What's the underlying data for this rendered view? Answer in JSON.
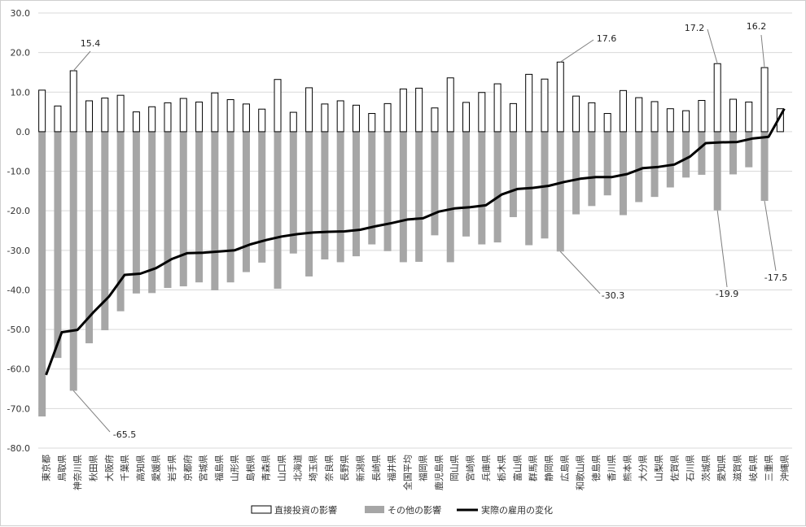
{
  "chart_data": {
    "type": "bar",
    "categories": [
      "東京都",
      "鳥取県",
      "神奈川県",
      "秋田県",
      "大阪府",
      "千葉県",
      "高知県",
      "愛媛県",
      "岩手県",
      "京都府",
      "宮城県",
      "福島県",
      "山形県",
      "島根県",
      "青森県",
      "山口県",
      "北海道",
      "埼玉県",
      "奈良県",
      "長野県",
      "新潟県",
      "長崎県",
      "福井県",
      "全国平均",
      "福岡県",
      "鹿児島県",
      "岡山県",
      "宮崎県",
      "兵庫県",
      "栃木県",
      "富山県",
      "群馬県",
      "静岡県",
      "広島県",
      "和歌山県",
      "徳島県",
      "香川県",
      "熊本県",
      "大分県",
      "山梨県",
      "佐賀県",
      "石川県",
      "茨城県",
      "愛知県",
      "滋賀県",
      "岐阜県",
      "三重県",
      "沖縄県"
    ],
    "series": [
      {
        "name": "直接投資の影響",
        "kind": "bar",
        "color": "#ffffff",
        "stroke": "#000000",
        "values": [
          10.5,
          6.5,
          15.4,
          7.8,
          8.5,
          9.2,
          5.0,
          6.3,
          7.3,
          8.4,
          7.5,
          9.8,
          8.1,
          7.0,
          5.7,
          13.2,
          4.9,
          11.1,
          7.0,
          7.8,
          6.7,
          4.6,
          7.1,
          10.8,
          11.0,
          6.0,
          13.6,
          7.4,
          9.9,
          12.1,
          7.1,
          14.5,
          13.3,
          17.6,
          9.0,
          7.3,
          4.6,
          10.4,
          8.6,
          7.6,
          5.8,
          5.3,
          7.9,
          17.2,
          8.2,
          7.5,
          16.2,
          5.8
        ]
      },
      {
        "name": "その他の影響",
        "kind": "bar",
        "color": "#a6a6a6",
        "values": [
          -72.0,
          -57.2,
          -65.5,
          -53.5,
          -50.2,
          -45.4,
          -40.9,
          -40.8,
          -39.5,
          -39.1,
          -38.1,
          -40.1,
          -38.1,
          -35.5,
          -33.1,
          -39.7,
          -30.8,
          -36.6,
          -32.3,
          -33.0,
          -31.5,
          -28.5,
          -30.2,
          -33.0,
          -32.9,
          -26.2,
          -33.0,
          -26.5,
          -28.5,
          -28.0,
          -21.6,
          -28.7,
          -27.0,
          -30.3,
          -20.9,
          -18.8,
          -16.1,
          -21.1,
          -17.8,
          -16.5,
          -14.1,
          -11.6,
          -10.9,
          -19.9,
          -10.8,
          -9.0,
          -17.5,
          3.8
        ]
      },
      {
        "name": "実際の雇用の変化",
        "kind": "line",
        "color": "#000000",
        "values": [
          -61.5,
          -50.7,
          -50.1,
          -45.7,
          -41.7,
          -36.2,
          -35.9,
          -34.5,
          -32.2,
          -30.7,
          -30.6,
          -30.3,
          -30.0,
          -28.5,
          -27.4,
          -26.5,
          -25.9,
          -25.5,
          -25.3,
          -25.2,
          -24.8,
          -23.9,
          -23.1,
          -22.2,
          -21.9,
          -20.2,
          -19.4,
          -19.1,
          -18.6,
          -15.9,
          -14.5,
          -14.2,
          -13.7,
          -12.7,
          -11.9,
          -11.5,
          -11.5,
          -10.7,
          -9.2,
          -8.9,
          -8.3,
          -6.3,
          -2.9,
          -2.7,
          -2.6,
          -1.7,
          -1.3,
          5.8
        ]
      }
    ],
    "ylim": [
      -80.0,
      30.0
    ],
    "yticks": [
      "30.0",
      "20.0",
      "10.0",
      "0.0",
      "-10.0",
      "-20.0",
      "-30.0",
      "-40.0",
      "-50.0",
      "-60.0",
      "-70.0",
      "-80.0"
    ],
    "grid": true,
    "legend_position": "bottom",
    "annotations": [
      {
        "label": "15.4",
        "category": "神奈川県",
        "value": 15.4
      },
      {
        "label": "-65.5",
        "category": "神奈川県",
        "value": -65.5
      },
      {
        "label": "17.6",
        "category": "広島県",
        "value": 17.6
      },
      {
        "label": "-30.3",
        "category": "広島県",
        "value": -30.3
      },
      {
        "label": "17.2",
        "category": "愛知県",
        "value": 17.2
      },
      {
        "label": "-19.9",
        "category": "愛知県",
        "value": -19.9
      },
      {
        "label": "16.2",
        "category": "三重県",
        "value": 16.2
      },
      {
        "label": "-17.5",
        "category": "三重県",
        "value": -17.5
      }
    ]
  }
}
